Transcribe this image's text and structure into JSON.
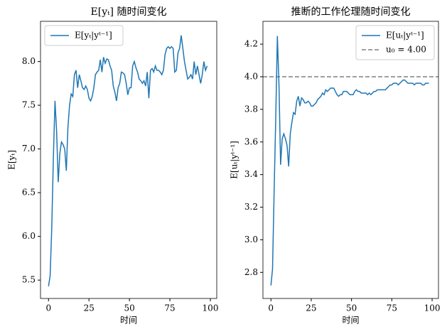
{
  "chart_data": [
    {
      "type": "line",
      "title": "E[yₜ] 随时间变化",
      "xlabel": "时间",
      "ylabel": "E[yₜ]",
      "x": [
        0,
        1,
        2,
        3,
        4,
        5,
        6,
        7,
        8,
        9,
        10,
        11,
        12,
        13,
        14,
        15,
        16,
        17,
        18,
        19,
        20,
        21,
        22,
        23,
        24,
        25,
        26,
        27,
        28,
        29,
        30,
        31,
        32,
        33,
        34,
        35,
        36,
        37,
        38,
        39,
        40,
        41,
        42,
        43,
        44,
        45,
        46,
        47,
        48,
        49,
        50,
        51,
        52,
        53,
        54,
        55,
        56,
        57,
        58,
        59,
        60,
        61,
        62,
        63,
        64,
        65,
        66,
        67,
        68,
        69,
        70,
        71,
        72,
        73,
        74,
        75,
        76,
        77,
        78,
        79,
        80,
        81,
        82,
        83,
        84,
        85,
        86,
        87,
        88,
        89,
        90,
        91,
        92,
        93,
        94,
        95,
        96,
        97,
        98
      ],
      "series": [
        {
          "name": "E[yₜ|yᵗ⁻¹]",
          "color": "#1f77b4",
          "values": [
            5.43,
            5.55,
            6.1,
            6.9,
            7.55,
            7.2,
            6.62,
            6.95,
            7.08,
            7.05,
            7.0,
            6.75,
            7.25,
            7.5,
            7.63,
            7.6,
            7.85,
            7.9,
            7.7,
            7.85,
            7.78,
            7.7,
            7.68,
            7.72,
            7.68,
            7.58,
            7.55,
            7.6,
            7.7,
            7.85,
            7.88,
            7.9,
            8.02,
            7.88,
            8.05,
            7.98,
            8.03,
            8.02,
            7.95,
            7.9,
            7.72,
            7.65,
            7.55,
            7.7,
            7.75,
            7.88,
            7.87,
            7.85,
            7.75,
            7.62,
            7.7,
            7.7,
            7.95,
            8.0,
            7.93,
            7.88,
            7.8,
            7.78,
            7.75,
            7.78,
            7.72,
            7.88,
            7.58,
            7.9,
            7.92,
            7.88,
            7.95,
            7.9,
            7.9,
            7.88,
            7.85,
            7.9,
            8.08,
            8.15,
            8.17,
            8.15,
            8.17,
            8.15,
            7.88,
            7.9,
            8.1,
            8.15,
            8.3,
            8.15,
            8.0,
            7.9,
            7.8,
            7.82,
            7.85,
            7.8,
            8.0,
            7.85,
            7.95,
            7.85,
            7.75,
            7.85,
            8.0,
            7.9,
            7.95
          ]
        }
      ],
      "xlim": [
        -4.95,
        103.95
      ],
      "xticks": [
        0,
        25,
        50,
        75,
        100
      ],
      "ylim": [
        5.29,
        8.46
      ],
      "yticks": [
        {
          "value": 5.5,
          "label": "5.5"
        },
        {
          "value": 6,
          "label": "6.0"
        },
        {
          "value": 6.5,
          "label": "6.5"
        },
        {
          "value": 7,
          "label": "7.0"
        },
        {
          "value": 7.5,
          "label": "7.5"
        },
        {
          "value": 8,
          "label": "8.0"
        }
      ],
      "legend": "upper left"
    },
    {
      "type": "line",
      "title": "推断的工作伦理随时间变化",
      "xlabel": "时间",
      "ylabel": "E[uₜ|yᵗ⁻¹]",
      "x": [
        0,
        1,
        2,
        3,
        4,
        5,
        6,
        7,
        8,
        9,
        10,
        11,
        12,
        13,
        14,
        15,
        16,
        17,
        18,
        19,
        20,
        21,
        22,
        23,
        24,
        25,
        26,
        27,
        28,
        29,
        30,
        31,
        32,
        33,
        34,
        35,
        36,
        37,
        38,
        39,
        40,
        41,
        42,
        43,
        44,
        45,
        46,
        47,
        48,
        49,
        50,
        51,
        52,
        53,
        54,
        55,
        56,
        57,
        58,
        59,
        60,
        61,
        62,
        63,
        64,
        65,
        66,
        67,
        68,
        69,
        70,
        71,
        72,
        73,
        74,
        75,
        76,
        77,
        78,
        79,
        80,
        81,
        82,
        83,
        84,
        85,
        86,
        87,
        88,
        89,
        90,
        91,
        92,
        93,
        94,
        95,
        96,
        97,
        98
      ],
      "series": [
        {
          "name": "E[uₜ|yᵗ⁻¹]",
          "color": "#1f77b4",
          "values": [
            2.72,
            2.82,
            3.3,
            3.75,
            4.25,
            3.95,
            3.46,
            3.62,
            3.65,
            3.62,
            3.58,
            3.45,
            3.65,
            3.72,
            3.78,
            3.77,
            3.85,
            3.88,
            3.82,
            3.87,
            3.86,
            3.84,
            3.84,
            3.85,
            3.84,
            3.82,
            3.82,
            3.83,
            3.84,
            3.86,
            3.87,
            3.88,
            3.9,
            3.89,
            3.92,
            3.91,
            3.92,
            3.93,
            3.93,
            3.93,
            3.91,
            3.89,
            3.88,
            3.89,
            3.89,
            3.91,
            3.91,
            3.91,
            3.9,
            3.89,
            3.89,
            3.89,
            3.91,
            3.92,
            3.91,
            3.91,
            3.9,
            3.9,
            3.9,
            3.9,
            3.89,
            3.9,
            3.89,
            3.9,
            3.91,
            3.91,
            3.92,
            3.92,
            3.92,
            3.92,
            3.92,
            3.92,
            3.93,
            3.94,
            3.95,
            3.95,
            3.96,
            3.96,
            3.96,
            3.95,
            3.96,
            3.97,
            3.98,
            3.98,
            3.97,
            3.96,
            3.96,
            3.96,
            3.96,
            3.95,
            3.96,
            3.96,
            3.96,
            3.96,
            3.95,
            3.95,
            3.96,
            3.96,
            3.96
          ]
        }
      ],
      "hlines": [
        {
          "name": "u₀ = 4.00",
          "value": 4.0,
          "color": "#808080"
        }
      ],
      "xlim": [
        -4.95,
        103.95
      ],
      "xticks": [
        0,
        25,
        50,
        75,
        100
      ],
      "ylim": [
        2.64,
        4.34
      ],
      "yticks": [
        {
          "value": 2.8,
          "label": "2.8"
        },
        {
          "value": 3,
          "label": "3.0"
        },
        {
          "value": 3.2,
          "label": "3.2"
        },
        {
          "value": 3.4,
          "label": "3.4"
        },
        {
          "value": 3.6,
          "label": "3.6"
        },
        {
          "value": 3.8,
          "label": "3.8"
        },
        {
          "value": 4,
          "label": "4.0"
        },
        {
          "value": 4.2,
          "label": "4.2"
        }
      ],
      "legend": "upper right"
    }
  ]
}
